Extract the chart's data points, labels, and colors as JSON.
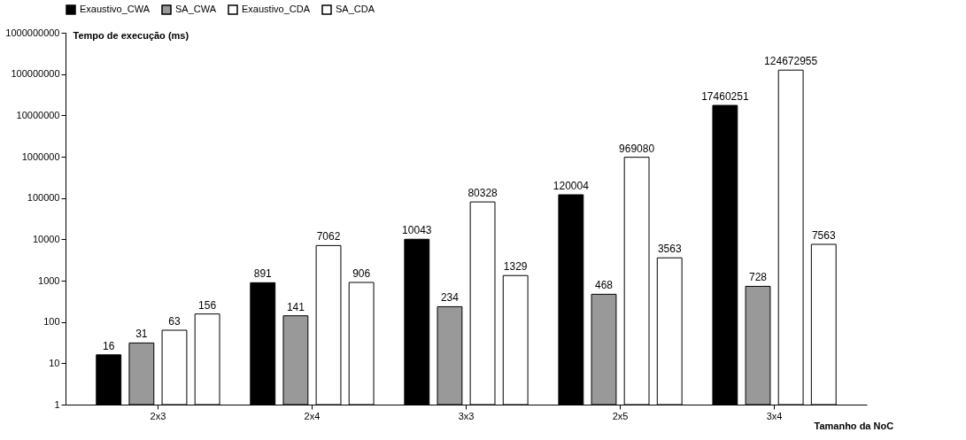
{
  "chart_data": {
    "type": "bar",
    "ylabel": "Tempo de execução (ms)",
    "xlabel": "Tamanho da NoC",
    "categories": [
      "2x3",
      "2x4",
      "3x3",
      "2x5",
      "3x4"
    ],
    "series": [
      {
        "name": "Exaustivo_CWA",
        "color": "#000000",
        "values": [
          16,
          891,
          10043,
          120004,
          17460251
        ]
      },
      {
        "name": "SA_CWA",
        "color": "#999999",
        "values": [
          31,
          141,
          234,
          468,
          728
        ]
      },
      {
        "name": "Exaustivo_CDA",
        "color": "#ffffff",
        "values": [
          63,
          7062,
          80328,
          969080,
          124672955
        ]
      },
      {
        "name": "SA_CDA",
        "color": "#ffffff",
        "values": [
          156,
          906,
          1329,
          3563,
          7563
        ]
      }
    ],
    "log": true,
    "ylim": [
      1,
      1000000000
    ],
    "yticks": [
      1,
      10,
      100,
      1000,
      10000,
      100000,
      1000000,
      10000000,
      100000000,
      1000000000
    ],
    "grid": false,
    "legend": "top",
    "data_labels": true
  }
}
